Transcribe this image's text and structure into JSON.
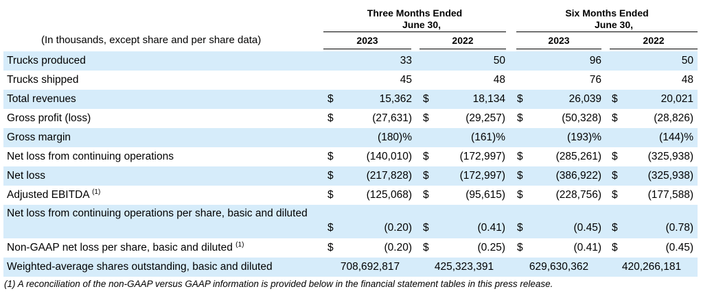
{
  "header": {
    "period1_line1": "Three Months Ended",
    "period1_line2": "June 30,",
    "period2_line1": "Six Months Ended",
    "period2_line2": "June 30,",
    "unit_note": "(In thousands, except share and per share data)",
    "years": [
      "2023",
      "2022",
      "2023",
      "2022"
    ]
  },
  "rows": [
    {
      "label": "Trucks produced",
      "values": [
        "33",
        "50",
        "96",
        "50"
      ],
      "currency": [
        "",
        "",
        "",
        ""
      ]
    },
    {
      "label": "Trucks shipped",
      "values": [
        "45",
        "48",
        "76",
        "48"
      ],
      "currency": [
        "",
        "",
        "",
        ""
      ]
    },
    {
      "label": "Total revenues",
      "values": [
        "15,362",
        "18,134",
        "26,039",
        "20,021"
      ],
      "currency": [
        "$",
        "$",
        "$",
        "$"
      ]
    },
    {
      "label": "Gross profit (loss)",
      "values": [
        "(27,631)",
        "(29,257)",
        "(50,328)",
        "(28,826)"
      ],
      "currency": [
        "$",
        "$",
        "$",
        "$"
      ]
    },
    {
      "label": "Gross margin",
      "values": [
        "(180)%",
        "(161)%",
        "(193)%",
        "(144)%"
      ],
      "currency": [
        "",
        "",
        "",
        ""
      ]
    },
    {
      "label": "Net loss from continuing operations",
      "values": [
        "(140,010)",
        "(172,997)",
        "(285,261)",
        "(325,938)"
      ],
      "currency": [
        "$",
        "$",
        "$",
        "$"
      ]
    },
    {
      "label": "Net loss",
      "values": [
        "(217,828)",
        "(172,997)",
        "(386,922)",
        "(325,938)"
      ],
      "currency": [
        "$",
        "$",
        "$",
        "$"
      ]
    },
    {
      "label": "Adjusted EBITDA",
      "footnote_mark": "(1)",
      "values": [
        "(125,068)",
        "(95,615)",
        "(228,756)",
        "(177,588)"
      ],
      "currency": [
        "$",
        "$",
        "$",
        "$"
      ]
    },
    {
      "label": "Net loss from continuing operations per share, basic and diluted",
      "values": [
        "(0.20)",
        "(0.41)",
        "(0.45)",
        "(0.78)"
      ],
      "currency": [
        "$",
        "$",
        "$",
        "$"
      ]
    },
    {
      "label": "Non-GAAP net loss per share, basic and diluted",
      "footnote_mark": "(1)",
      "values": [
        "(0.20)",
        "(0.25)",
        "(0.41)",
        "(0.45)"
      ],
      "currency": [
        "$",
        "$",
        "$",
        "$"
      ]
    },
    {
      "label": "Weighted-average shares outstanding, basic and diluted",
      "values": [
        "708,692,817",
        "425,323,391",
        "629,630,362",
        "420,266,181"
      ],
      "currency": [
        "",
        "",
        "",
        ""
      ]
    }
  ],
  "footnote": "(1) A reconciliation of the non-GAAP versus GAAP information is provided below in the financial statement tables in this press release.",
  "colors": {
    "row_shade": "#d6ecfa"
  }
}
